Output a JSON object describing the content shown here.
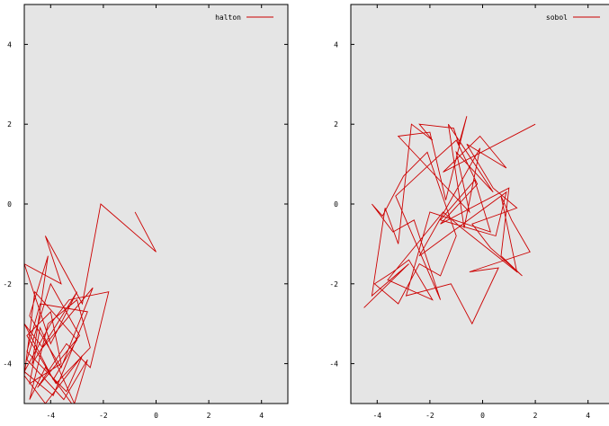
{
  "chart_data": [
    {
      "type": "line",
      "legend": "top-right",
      "grid": false,
      "xlim": [
        -5,
        5
      ],
      "ylim": [
        -5,
        5
      ],
      "xticks": [
        "-4",
        "-2",
        "0",
        "2",
        "4"
      ],
      "yticks": [
        "4",
        "2",
        "0",
        "-2",
        "-4"
      ],
      "series": [
        {
          "name": "halton",
          "color": "#cc0000",
          "x": [
            0.0,
            -0.8,
            0.0,
            -2.1,
            -2.8,
            -4.2,
            -3.6,
            -5.0,
            -4.0,
            -3.0,
            -4.7,
            -4.1,
            -4.8,
            -3.6,
            -2.4,
            -4.3,
            -5.0,
            -3.9,
            -3.0,
            -4.6,
            -5.0,
            -4.2,
            -2.8,
            -3.4,
            -4.9,
            -4.4,
            -2.6,
            -3.9,
            -5.0,
            -4.0,
            -3.3,
            -1.8,
            -2.5,
            -3.4,
            -4.5,
            -2.9,
            -4.0,
            -4.9,
            -3.5,
            -2.6,
            -3.1,
            -4.4,
            -4.8,
            -3.6,
            -4.0,
            -4.9,
            -3.8,
            -2.5,
            -3.0,
            -4.1,
            -4.8,
            -4.2,
            -3.2
          ],
          "y": [
            -1.2,
            -0.2,
            -1.2,
            0.0,
            -2.5,
            -0.8,
            -2.0,
            -1.5,
            -3.5,
            -2.2,
            -4.0,
            -1.3,
            -2.8,
            -4.1,
            -2.1,
            -3.6,
            -3.0,
            -4.4,
            -3.4,
            -2.2,
            -4.3,
            -5.0,
            -3.8,
            -4.7,
            -3.7,
            -2.5,
            -2.7,
            -4.8,
            -4.2,
            -3.0,
            -2.4,
            -2.2,
            -4.1,
            -3.5,
            -4.6,
            -3.3,
            -2.0,
            -3.9,
            -4.9,
            -3.9,
            -5.0,
            -3.1,
            -4.5,
            -4.0,
            -2.7,
            -3.3,
            -4.5,
            -3.6,
            -2.4,
            -3.0,
            -4.9,
            -4.1,
            -5.0
          ]
        }
      ]
    },
    {
      "type": "line",
      "legend": "top-right",
      "grid": false,
      "xlim": [
        -5,
        5
      ],
      "ylim": [
        -5,
        5
      ],
      "xticks": [
        "-4",
        "-2",
        "0",
        "2",
        "4"
      ],
      "yticks": [
        "4",
        "2",
        "0",
        "-2",
        "-4"
      ],
      "series": [
        {
          "name": "sobol",
          "color": "#cc0000",
          "x": [
            -4.5,
            -2.8,
            -4.2,
            -3.7,
            -3.2,
            -2.7,
            -1.9,
            -2.4,
            -1.1,
            -0.9,
            -0.6,
            -1.4,
            -2.0,
            -3.2,
            -0.5,
            -1.0,
            0.4,
            -1.3,
            -0.7,
            -0.1,
            -2.4,
            0.9,
            0.5,
            -1.6,
            -0.3,
            0.3,
            -2.0,
            -2.9,
            -1.2,
            -0.4,
            0.6,
            -0.5,
            1.8,
            1.1,
            0.7,
            1.3,
            -0.8,
            -1.5,
            -3.6,
            -1.9,
            -2.8,
            -3.4,
            -4.1,
            -3.2,
            -2.4,
            -1.6,
            -1.0,
            -2.1,
            -3.0,
            -3.8,
            -4.2,
            -3.4,
            -2.6,
            -1.6,
            -3.3,
            -2.0,
            -1.0,
            -0.2,
            -1.6,
            1.0,
            0.7,
            1.5,
            0.3,
            -0.4,
            1.3,
            0.4,
            -0.6,
            0.9,
            -0.1,
            -1.5,
            2.0
          ],
          "y": [
            -2.6,
            -1.5,
            -2.3,
            -0.1,
            -1.0,
            2.0,
            1.6,
            2.0,
            1.9,
            1.5,
            2.2,
            0.1,
            1.8,
            1.7,
            -0.2,
            1.3,
            0.3,
            2.0,
            -0.6,
            1.4,
            -1.3,
            0.3,
            -0.8,
            -0.4,
            0.6,
            -0.7,
            -0.2,
            -2.3,
            -2.0,
            -3.0,
            -1.6,
            -1.7,
            -1.2,
            -0.4,
            0.2,
            -1.7,
            -0.6,
            -0.2,
            -1.9,
            -2.4,
            -1.4,
            -1.7,
            -2.0,
            -2.5,
            -1.5,
            -1.8,
            -0.8,
            1.3,
            0.7,
            -0.3,
            0.0,
            -0.7,
            -0.4,
            -2.4,
            0.2,
            1.0,
            1.6,
            0.5,
            -0.5,
            0.4,
            -1.3,
            -1.8,
            -1.1,
            -0.5,
            -0.1,
            0.4,
            1.5,
            0.9,
            1.7,
            0.8,
            2.0
          ]
        }
      ]
    }
  ]
}
